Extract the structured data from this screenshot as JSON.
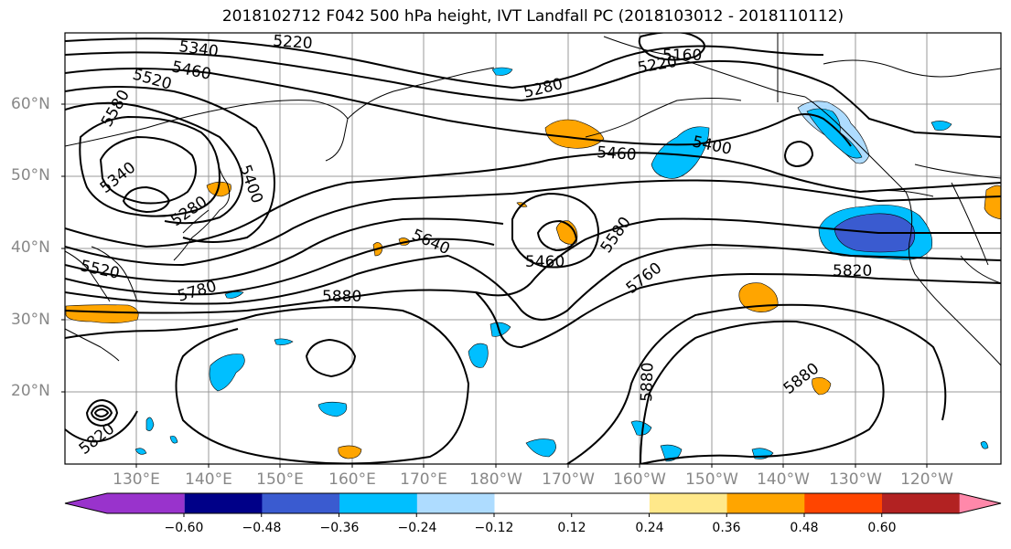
{
  "title": "2018102712 F042 500 hPa height, IVT Landfall PC (2018103012 - 2018110112)",
  "map": {
    "lat_labels": [
      "60°N",
      "50°N",
      "40°N",
      "30°N",
      "20°N"
    ],
    "lon_labels": [
      "130°E",
      "140°E",
      "150°E",
      "160°E",
      "170°E",
      "180°W",
      "170°W",
      "160°W",
      "150°W",
      "140°W",
      "130°W",
      "120°W"
    ],
    "contour_labels": [
      "5340",
      "5220",
      "5160",
      "5220",
      "5460",
      "5280",
      "5520",
      "5580",
      "5340",
      "5400",
      "5280",
      "5520",
      "5780",
      "5640",
      "5460",
      "5460",
      "5580",
      "5400",
      "5760",
      "5820",
      "5880",
      "5880",
      "5880",
      "5820"
    ],
    "fill_colors": {
      "strong_negative": "#3a5bd0",
      "negative": "#00bfff",
      "light_negative": "#aedcff",
      "light_positive": "#ffe88a",
      "positive": "#ffa500"
    }
  },
  "colorbar": {
    "colors": [
      "#9933cc",
      "#000088",
      "#3a5bd0",
      "#00bfff",
      "#aedcff",
      "#ffffff",
      "#ffffff",
      "#ffe88a",
      "#ffa500",
      "#ff4500",
      "#b22222",
      "#ff88aa"
    ],
    "tick_labels": [
      "−0.60",
      "−0.48",
      "−0.36",
      "−0.24",
      "−0.12",
      "0.12",
      "0.24",
      "0.36",
      "0.48",
      "0.60"
    ]
  }
}
